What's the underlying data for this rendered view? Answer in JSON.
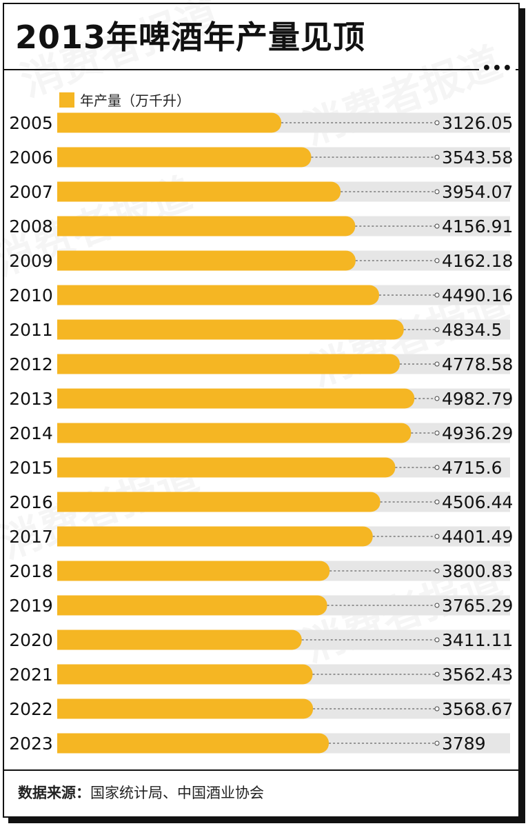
{
  "title": "2013年啤酒年产量见顶",
  "menu_icon": "more-dots-icon",
  "legend": {
    "label": "年产量（万千升）",
    "color": "#F5B623"
  },
  "watermark": "消费者报道",
  "source": {
    "label": "数据来源：",
    "text": "国家统计局、中国酒业协会"
  },
  "colors": {
    "bar": "#F5B623",
    "track": "#E6E6E6",
    "text": "#111111"
  },
  "chart_data": {
    "type": "bar",
    "orientation": "horizontal",
    "title": "2013年啤酒年产量见顶",
    "xlabel": "",
    "ylabel": "",
    "xlim": [
      0,
      6000
    ],
    "series": [
      {
        "name": "年产量（万千升）"
      }
    ],
    "categories": [
      "2005",
      "2006",
      "2007",
      "2008",
      "2009",
      "2010",
      "2011",
      "2012",
      "2013",
      "2014",
      "2015",
      "2016",
      "2017",
      "2018",
      "2019",
      "2020",
      "2021",
      "2022",
      "2023"
    ],
    "values": [
      3126.05,
      3543.58,
      3954.07,
      4156.91,
      4162.18,
      4490.16,
      4834.5,
      4778.58,
      4982.79,
      4936.29,
      4715.6,
      4506.44,
      4401.49,
      3800.83,
      3765.29,
      3411.11,
      3562.43,
      3568.67,
      3789
    ],
    "value_labels": [
      "3126.05",
      "3543.58",
      "3954.07",
      "4156.91",
      "4162.18",
      "4490.16",
      "4834.5",
      "4778.58",
      "4982.79",
      "4936.29",
      "4715.6",
      "4506.44",
      "4401.49",
      "3800.83",
      "3765.29",
      "3411.11",
      "3562.43",
      "3568.67",
      "3789"
    ]
  }
}
